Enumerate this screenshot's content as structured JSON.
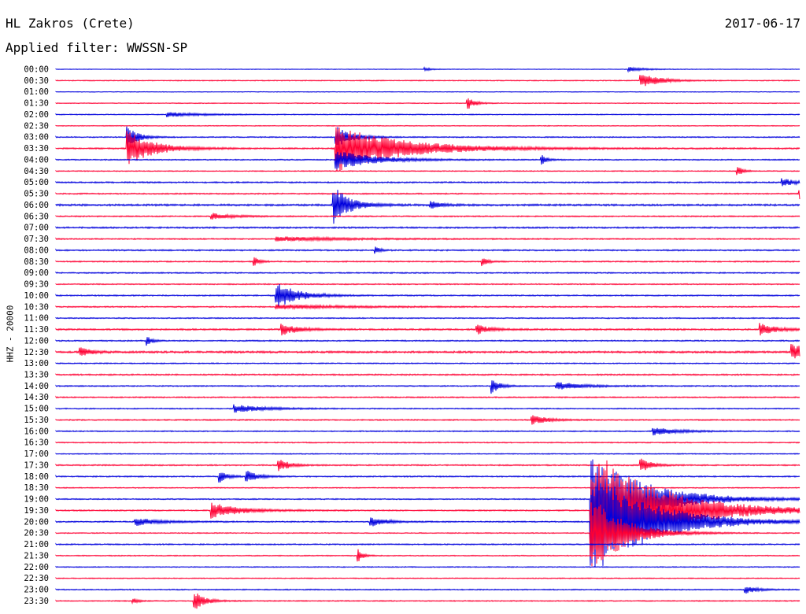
{
  "header": {
    "station": "HL Zakros (Crete)",
    "date": "2017-06-17",
    "filter": "Applied filter: WWSSN-SP"
  },
  "chart_data": {
    "type": "line",
    "ylabel": "HHZ - 20000",
    "tick_labels": [
      "00:00",
      "00:30",
      "01:00",
      "01:30",
      "02:00",
      "02:30",
      "03:00",
      "03:30",
      "04:00",
      "04:30",
      "05:00",
      "05:30",
      "06:00",
      "06:30",
      "07:00",
      "07:30",
      "08:00",
      "08:30",
      "09:00",
      "09:30",
      "10:00",
      "10:30",
      "11:00",
      "11:30",
      "12:00",
      "12:30",
      "13:00",
      "13:30",
      "14:00",
      "14:30",
      "15:00",
      "15:30",
      "16:00",
      "16:30",
      "17:00",
      "17:30",
      "18:00",
      "18:30",
      "19:00",
      "19:30",
      "20:00",
      "20:30",
      "21:00",
      "21:30",
      "22:00",
      "22:30",
      "23:00",
      "23:30"
    ],
    "x_unit": "minutes",
    "xlim": [
      0,
      30
    ],
    "colors": {
      "even_rows": "#0000dd",
      "odd_rows": "#ff0033"
    },
    "noise_levels": [
      0.4,
      0.6,
      0.4,
      0.5,
      0.6,
      0.5,
      0.7,
      0.9,
      0.7,
      0.6,
      0.9,
      0.8,
      1.2,
      0.8,
      1.0,
      0.8,
      0.9,
      0.8,
      0.8,
      0.7,
      0.8,
      0.8,
      0.7,
      1.0,
      0.8,
      1.2,
      0.7,
      0.9,
      0.8,
      0.8,
      0.7,
      0.8,
      0.7,
      0.7,
      0.6,
      0.8,
      0.8,
      0.6,
      0.7,
      0.8,
      0.8,
      0.6,
      0.8,
      0.6,
      0.6,
      0.6,
      0.7,
      0.7
    ],
    "events": [
      {
        "row": 0,
        "minute": 14.9,
        "amplitude": 2,
        "decay": 0.3
      },
      {
        "row": 0,
        "minute": 23.1,
        "amplitude": 3,
        "decay": 0.6
      },
      {
        "row": 1,
        "minute": 23.6,
        "amplitude": 9,
        "decay": 0.7
      },
      {
        "row": 3,
        "minute": 16.6,
        "amplitude": 8,
        "decay": 0.3
      },
      {
        "row": 4,
        "minute": 4.5,
        "amplitude": 3,
        "decay": 1.2
      },
      {
        "row": 6,
        "minute": 2.9,
        "amplitude": 14,
        "decay": 0.4
      },
      {
        "row": 6,
        "minute": 11.3,
        "amplitude": 14,
        "decay": 0.6
      },
      {
        "row": 7,
        "minute": 2.9,
        "amplitude": 22,
        "decay": 1.0
      },
      {
        "row": 7,
        "minute": 11.3,
        "amplitude": 30,
        "decay": 2.5
      },
      {
        "row": 8,
        "minute": 11.3,
        "amplitude": 12,
        "decay": 1.5
      },
      {
        "row": 8,
        "minute": 19.6,
        "amplitude": 6,
        "decay": 0.2
      },
      {
        "row": 9,
        "minute": 27.5,
        "amplitude": 7,
        "decay": 0.2
      },
      {
        "row": 10,
        "minute": 29.3,
        "amplitude": 5,
        "decay": 0.5
      },
      {
        "row": 11,
        "minute": 30.0,
        "amplitude": 8,
        "decay": 0.3
      },
      {
        "row": 12,
        "minute": 11.2,
        "amplitude": 26,
        "decay": 0.6
      },
      {
        "row": 12,
        "minute": 15.1,
        "amplitude": 5,
        "decay": 0.4
      },
      {
        "row": 13,
        "minute": 6.3,
        "amplitude": 4,
        "decay": 0.8
      },
      {
        "row": 15,
        "minute": 8.9,
        "amplitude": 3,
        "decay": 2.5
      },
      {
        "row": 16,
        "minute": 12.9,
        "amplitude": 4,
        "decay": 0.2
      },
      {
        "row": 17,
        "minute": 8.0,
        "amplitude": 6,
        "decay": 0.2
      },
      {
        "row": 17,
        "minute": 17.2,
        "amplitude": 6,
        "decay": 0.2
      },
      {
        "row": 20,
        "minute": 8.9,
        "amplitude": 18,
        "decay": 0.8
      },
      {
        "row": 21,
        "minute": 8.9,
        "amplitude": 3,
        "decay": 2.5
      },
      {
        "row": 23,
        "minute": 9.1,
        "amplitude": 8,
        "decay": 0.6
      },
      {
        "row": 23,
        "minute": 17.0,
        "amplitude": 6,
        "decay": 0.5
      },
      {
        "row": 23,
        "minute": 28.4,
        "amplitude": 8,
        "decay": 0.6
      },
      {
        "row": 24,
        "minute": 3.7,
        "amplitude": 6,
        "decay": 0.2
      },
      {
        "row": 25,
        "minute": 1.0,
        "amplitude": 6,
        "decay": 0.4
      },
      {
        "row": 25,
        "minute": 29.7,
        "amplitude": 10,
        "decay": 0.7
      },
      {
        "row": 28,
        "minute": 17.6,
        "amplitude": 10,
        "decay": 0.3
      },
      {
        "row": 28,
        "minute": 20.2,
        "amplitude": 5,
        "decay": 1.0
      },
      {
        "row": 30,
        "minute": 7.2,
        "amplitude": 5,
        "decay": 1.2
      },
      {
        "row": 31,
        "minute": 19.2,
        "amplitude": 6,
        "decay": 0.6
      },
      {
        "row": 32,
        "minute": 24.1,
        "amplitude": 5,
        "decay": 1.0
      },
      {
        "row": 35,
        "minute": 9.0,
        "amplitude": 8,
        "decay": 0.4
      },
      {
        "row": 35,
        "minute": 23.6,
        "amplitude": 9,
        "decay": 0.4
      },
      {
        "row": 36,
        "minute": 6.6,
        "amplitude": 8,
        "decay": 0.3
      },
      {
        "row": 36,
        "minute": 7.7,
        "amplitude": 8,
        "decay": 0.4
      },
      {
        "row": 38,
        "minute": 21.6,
        "amplitude": 60,
        "decay": 2.0
      },
      {
        "row": 39,
        "minute": 21.6,
        "amplitude": 80,
        "decay": 2.6
      },
      {
        "row": 39,
        "minute": 6.3,
        "amplitude": 10,
        "decay": 1.1
      },
      {
        "row": 40,
        "minute": 21.6,
        "amplitude": 70,
        "decay": 2.2
      },
      {
        "row": 40,
        "minute": 3.2,
        "amplitude": 5,
        "decay": 1.0
      },
      {
        "row": 40,
        "minute": 12.7,
        "amplitude": 6,
        "decay": 0.6
      },
      {
        "row": 41,
        "minute": 21.6,
        "amplitude": 50,
        "decay": 1.2
      },
      {
        "row": 43,
        "minute": 12.2,
        "amplitude": 8,
        "decay": 0.2
      },
      {
        "row": 46,
        "minute": 27.8,
        "amplitude": 5,
        "decay": 0.5
      },
      {
        "row": 47,
        "minute": 5.6,
        "amplitude": 12,
        "decay": 0.4
      },
      {
        "row": 47,
        "minute": 3.1,
        "amplitude": 4,
        "decay": 0.2
      }
    ]
  }
}
